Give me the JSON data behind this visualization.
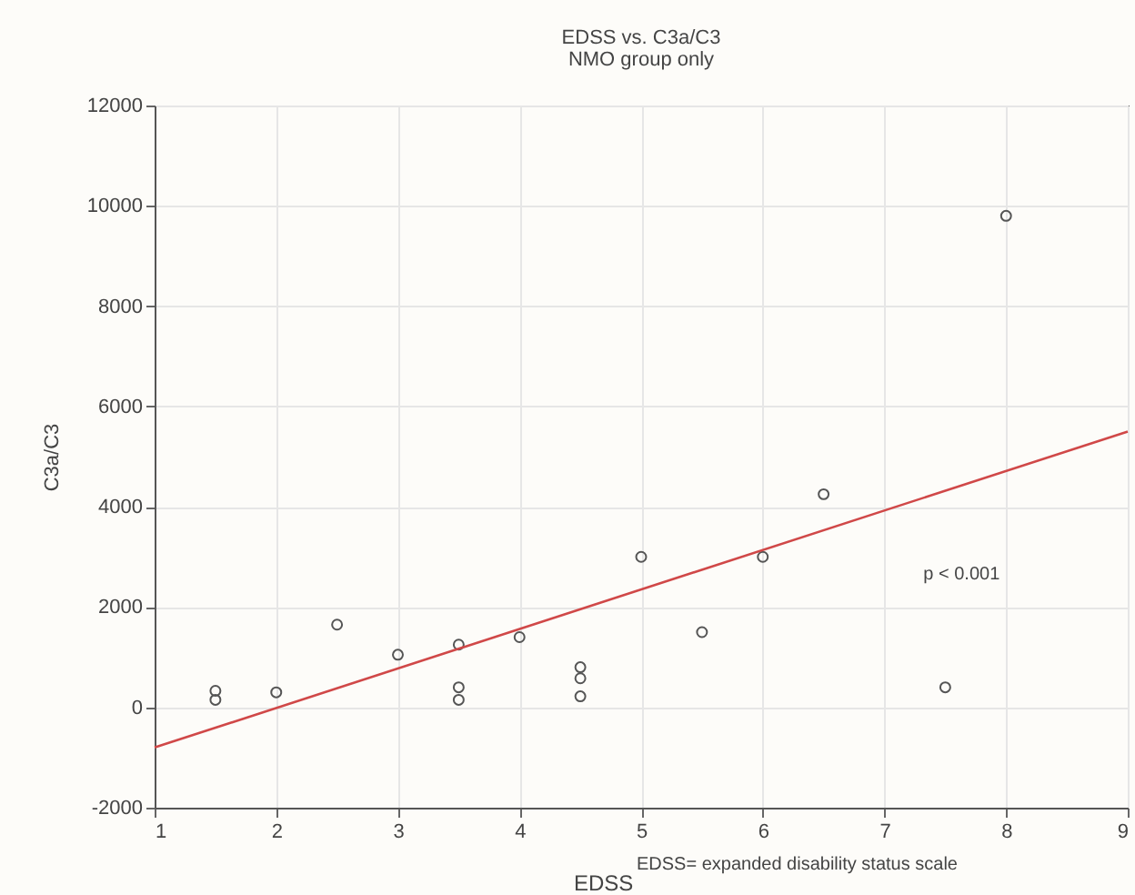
{
  "chart_data": {
    "type": "scatter",
    "title": "EDSS    vs. C3a/C3",
    "subtitle": "NMO group only",
    "xlabel": "EDSS",
    "ylabel": "C3a/C3",
    "annotations": [
      "p < 0.001",
      "EDSS= expanded disability status scale"
    ],
    "xlim": [
      1,
      9
    ],
    "xticks": [
      1,
      2,
      3,
      4,
      5,
      6,
      7,
      8,
      9
    ],
    "ylim": [
      -2000,
      12000
    ],
    "yticks": [
      -2000,
      0,
      2000,
      4000,
      6000,
      8000,
      10000,
      12000
    ],
    "grid": true,
    "marker": "circle",
    "series": [
      {
        "color": "#555555",
        "x": [
          1.5,
          1.5,
          2,
          2.5,
          3,
          3.5,
          3.5,
          3.5,
          4,
          4.5,
          4.5,
          4.5,
          5,
          5.5,
          6,
          6.5,
          7.5,
          8
        ],
        "values": [
          330,
          150,
          300,
          1650,
          1050,
          1250,
          400,
          150,
          1400,
          800,
          580,
          220,
          3000,
          1500,
          3000,
          4250,
          400,
          9800
        ]
      },
      {
        "type": "line",
        "color": "#d04848",
        "x": [
          1,
          9
        ],
        "values": [
          -800,
          5500
        ],
        "marker": "none"
      }
    ]
  }
}
